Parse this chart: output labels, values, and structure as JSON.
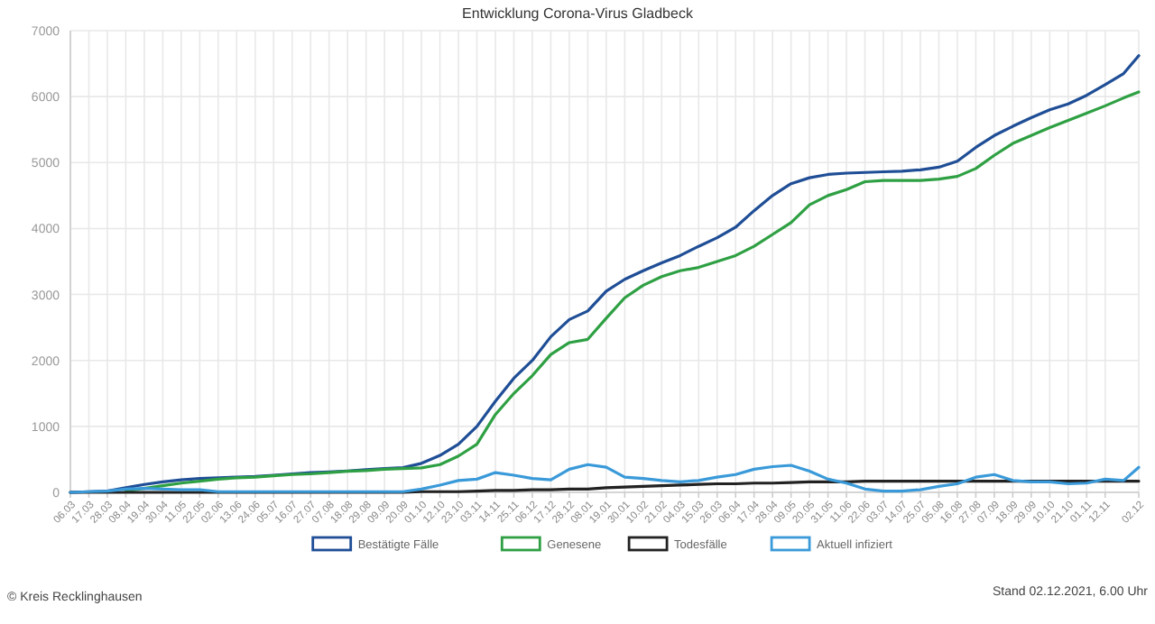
{
  "chart_data": {
    "type": "line",
    "title": "Entwicklung Corona-Virus Gladbeck",
    "x": [
      "2020-03-06",
      "2020-03-17",
      "2020-03-28",
      "2020-04-08",
      "2020-04-19",
      "2020-04-30",
      "2020-05-11",
      "2020-05-22",
      "2020-06-02",
      "2020-06-13",
      "2020-06-24",
      "2020-07-05",
      "2020-07-16",
      "2020-07-27",
      "2020-08-07",
      "2020-08-18",
      "2020-08-29",
      "2020-09-09",
      "2020-09-20",
      "2020-10-01",
      "2020-10-12",
      "2020-10-23",
      "2020-11-03",
      "2020-11-14",
      "2020-11-25",
      "2020-12-06",
      "2020-12-17",
      "2020-12-28",
      "2021-01-08",
      "2021-01-19",
      "2021-01-30",
      "2021-02-10",
      "2021-02-21",
      "2021-03-04",
      "2021-03-15",
      "2021-03-26",
      "2021-04-06",
      "2021-04-17",
      "2021-04-28",
      "2021-05-09",
      "2021-05-20",
      "2021-05-31",
      "2021-06-11",
      "2021-06-22",
      "2021-07-03",
      "2021-07-14",
      "2021-07-25",
      "2021-08-05",
      "2021-08-16",
      "2021-08-27",
      "2021-09-07",
      "2021-09-18",
      "2021-09-29",
      "2021-10-10",
      "2021-10-21",
      "2021-11-01",
      "2021-11-12",
      "2021-11-23",
      "2021-12-02"
    ],
    "series": [
      {
        "name": "Bestätigte Fälle",
        "color": "#1f4e96",
        "values": [
          0,
          10,
          20,
          70,
          120,
          160,
          190,
          210,
          220,
          230,
          240,
          260,
          280,
          300,
          310,
          325,
          345,
          360,
          375,
          440,
          560,
          730,
          1000,
          1380,
          1730,
          2000,
          2360,
          2620,
          2750,
          3050,
          3230,
          3360,
          3480,
          3590,
          3730,
          3860,
          4020,
          4270,
          4500,
          4680,
          4770,
          4820,
          4840,
          4850,
          4860,
          4870,
          4890,
          4930,
          5020,
          5230,
          5410,
          5550,
          5680,
          5800,
          5890,
          6020,
          6180,
          6350,
          6620
        ]
      },
      {
        "name": "Genesene",
        "color": "#2ea043",
        "values": [
          null,
          null,
          null,
          20,
          60,
          100,
          140,
          170,
          200,
          220,
          230,
          250,
          270,
          280,
          300,
          320,
          330,
          350,
          360,
          370,
          420,
          550,
          730,
          1180,
          1500,
          1770,
          2090,
          2270,
          2320,
          2640,
          2950,
          3140,
          3270,
          3360,
          3410,
          3500,
          3590,
          3730,
          3910,
          4090,
          4360,
          4500,
          4590,
          4710,
          4730,
          4730,
          4730,
          4750,
          4790,
          4910,
          5110,
          5290,
          5410,
          5530,
          5640,
          5750,
          5860,
          5980,
          6070
        ]
      },
      {
        "name": "Todesfälle",
        "color": "#222222",
        "values": [
          0,
          0,
          0,
          0,
          0,
          0,
          0,
          0,
          0,
          0,
          0,
          0,
          0,
          0,
          0,
          0,
          0,
          0,
          0,
          10,
          10,
          10,
          20,
          30,
          30,
          40,
          40,
          50,
          50,
          70,
          80,
          90,
          100,
          110,
          120,
          130,
          130,
          140,
          140,
          150,
          160,
          160,
          160,
          170,
          170,
          170,
          170,
          170,
          170,
          170,
          170,
          170,
          170,
          170,
          170,
          170,
          170,
          170,
          170
        ]
      },
      {
        "name": "Aktuell infiziert",
        "color": "#3a9ad9",
        "values": [
          0,
          10,
          20,
          50,
          60,
          50,
          40,
          40,
          10,
          10,
          10,
          10,
          10,
          10,
          10,
          10,
          10,
          10,
          10,
          50,
          110,
          180,
          200,
          300,
          260,
          210,
          190,
          350,
          420,
          380,
          230,
          210,
          180,
          160,
          180,
          230,
          270,
          350,
          390,
          410,
          320,
          200,
          140,
          50,
          20,
          20,
          40,
          90,
          130,
          230,
          270,
          180,
          160,
          160,
          130,
          140,
          200,
          180,
          380
        ]
      }
    ],
    "xlim": [
      "2020-03-06",
      "2021-12-02"
    ],
    "xticks": [
      {
        "value": "2020-03-06",
        "label": "06.03"
      },
      {
        "value": "2020-03-17",
        "label": "17.03"
      },
      {
        "value": "2020-03-28",
        "label": "28.03"
      },
      {
        "value": "2020-04-08",
        "label": "08.04"
      },
      {
        "value": "2020-04-19",
        "label": "19.04"
      },
      {
        "value": "2020-04-30",
        "label": "30.04"
      },
      {
        "value": "2020-05-11",
        "label": "11.05"
      },
      {
        "value": "2020-05-22",
        "label": "22.05"
      },
      {
        "value": "2020-06-02",
        "label": "02.06"
      },
      {
        "value": "2020-06-13",
        "label": "13.06"
      },
      {
        "value": "2020-06-24",
        "label": "24.06"
      },
      {
        "value": "2020-07-05",
        "label": "05.07"
      },
      {
        "value": "2020-07-16",
        "label": "16.07"
      },
      {
        "value": "2020-07-27",
        "label": "27.07"
      },
      {
        "value": "2020-08-07",
        "label": "07.08"
      },
      {
        "value": "2020-08-18",
        "label": "18.08"
      },
      {
        "value": "2020-08-29",
        "label": "29.08"
      },
      {
        "value": "2020-09-09",
        "label": "09.09"
      },
      {
        "value": "2020-09-20",
        "label": "20.09"
      },
      {
        "value": "2020-10-01",
        "label": "01.10"
      },
      {
        "value": "2020-10-12",
        "label": "12.10"
      },
      {
        "value": "2020-10-23",
        "label": "23.10"
      },
      {
        "value": "2020-11-03",
        "label": "03.11"
      },
      {
        "value": "2020-11-14",
        "label": "14.11"
      },
      {
        "value": "2020-11-25",
        "label": "25.11"
      },
      {
        "value": "2020-12-06",
        "label": "06.12"
      },
      {
        "value": "2020-12-17",
        "label": "17.12"
      },
      {
        "value": "2020-12-28",
        "label": "28.12"
      },
      {
        "value": "2021-01-08",
        "label": "08.01"
      },
      {
        "value": "2021-01-19",
        "label": "19.01"
      },
      {
        "value": "2021-01-30",
        "label": "30.01"
      },
      {
        "value": "2021-02-10",
        "label": "10.02"
      },
      {
        "value": "2021-02-21",
        "label": "21.02"
      },
      {
        "value": "2021-03-04",
        "label": "04.03"
      },
      {
        "value": "2021-03-15",
        "label": "15.03"
      },
      {
        "value": "2021-03-26",
        "label": "26.03"
      },
      {
        "value": "2021-04-06",
        "label": "06.04"
      },
      {
        "value": "2021-04-17",
        "label": "17.04"
      },
      {
        "value": "2021-04-28",
        "label": "28.04"
      },
      {
        "value": "2021-05-09",
        "label": "09.05"
      },
      {
        "value": "2021-05-20",
        "label": "20.05"
      },
      {
        "value": "2021-05-31",
        "label": "31.05"
      },
      {
        "value": "2021-06-11",
        "label": "11.06"
      },
      {
        "value": "2021-06-22",
        "label": "22.06"
      },
      {
        "value": "2021-07-03",
        "label": "03.07"
      },
      {
        "value": "2021-07-14",
        "label": "14.07"
      },
      {
        "value": "2021-07-25",
        "label": "25.07"
      },
      {
        "value": "2021-08-05",
        "label": "05.08"
      },
      {
        "value": "2021-08-16",
        "label": "16.08"
      },
      {
        "value": "2021-08-27",
        "label": "27.08"
      },
      {
        "value": "2021-09-07",
        "label": "07.09"
      },
      {
        "value": "2021-09-18",
        "label": "18.09"
      },
      {
        "value": "2021-09-29",
        "label": "29.09"
      },
      {
        "value": "2021-10-10",
        "label": "10.10"
      },
      {
        "value": "2021-10-21",
        "label": "21.10"
      },
      {
        "value": "2021-11-01",
        "label": "01.11"
      },
      {
        "value": "2021-11-12",
        "label": "12.11"
      },
      {
        "value": "2021-12-02",
        "label": "02.12"
      }
    ],
    "ylim": [
      0,
      7000
    ],
    "yticks": [
      0,
      1000,
      2000,
      3000,
      4000,
      5000,
      6000,
      7000
    ],
    "grid": true,
    "legend": "bottom",
    "marker": "none",
    "line_style": "solid",
    "annotations": [
      "© Kreis Recklinghausen",
      "Stand 02.12.2021, 6.00 Uhr"
    ]
  }
}
